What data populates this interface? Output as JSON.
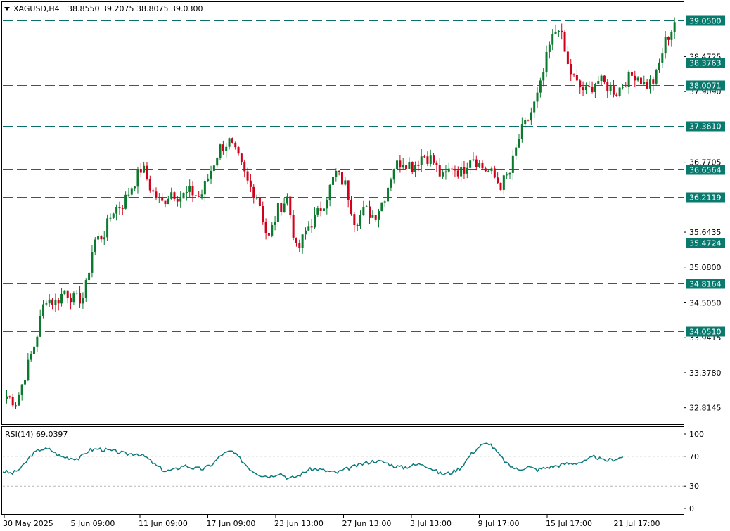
{
  "header": {
    "symbol": "XAGUSD,H4",
    "ohlc": "38.8550 39.2075 38.8075 39.0300"
  },
  "rsi_panel": {
    "label": "RSI(14) 69.0397",
    "levels": [
      "100",
      "70",
      "30",
      "0"
    ]
  },
  "colors": {
    "bull": "#0b7a2e",
    "bear": "#d0021b",
    "level_line": "#0b6e6a",
    "tag_bg": "#0b7a6e",
    "rsi_line": "#0b7a7a",
    "frame": "#000000"
  },
  "chart_data": [
    {
      "type": "candlestick",
      "title": "XAGUSD,H4",
      "ylim": [
        32.55,
        39.35
      ],
      "y_ticks": [
        "38.4725",
        "37.9090",
        "36.7705",
        "35.6435",
        "35.0800",
        "34.5050",
        "33.9415",
        "33.3780",
        "32.8145"
      ],
      "price_levels": [
        "39.0500",
        "38.3763",
        "38.0071",
        "37.3610",
        "36.6564",
        "36.2119",
        "35.4724",
        "34.8164",
        "34.0510"
      ],
      "x_ticks": [
        "30 May 2025",
        "5 Jun 09:00",
        "11 Jun 09:00",
        "17 Jun 09:00",
        "23 Jun 13:00",
        "27 Jun 13:00",
        "3 Jul 13:00",
        "9 Jul 17:00",
        "15 Jul 17:00",
        "21 Jul 17:00"
      ],
      "close_path": [
        33.0,
        32.9,
        33.4,
        33.9,
        34.6,
        34.5,
        34.7,
        34.55,
        34.6,
        35.5,
        35.6,
        36.0,
        36.1,
        36.4,
        36.7,
        36.3,
        36.1,
        36.3,
        36.2,
        36.3,
        36.2,
        36.6,
        37.0,
        37.1,
        36.8,
        36.4,
        36.2,
        35.5,
        36.0,
        36.2,
        35.3,
        35.7,
        35.9,
        36.2,
        36.6,
        36.4,
        35.8,
        36.0,
        35.9,
        36.2,
        36.7,
        36.8,
        36.7,
        36.9,
        36.8,
        36.5,
        36.7,
        36.6,
        36.9,
        36.7,
        36.6,
        36.4,
        36.6,
        37.2,
        37.5,
        37.9,
        38.6,
        39.0,
        38.3,
        38.0,
        37.9,
        38.1,
        38.0,
        37.9,
        38.1,
        38.2,
        38.0,
        38.1,
        38.7,
        39.0
      ],
      "rsi": {
        "name": "RSI(14)",
        "ylim": [
          0,
          100
        ],
        "last": 69.0397,
        "levels": [
          70,
          30
        ],
        "values": [
          50,
          47,
          55,
          72,
          80,
          79,
          70,
          68,
          67,
          78,
          80,
          78,
          76,
          73,
          74,
          69,
          58,
          50,
          52,
          58,
          54,
          53,
          60,
          73,
          77,
          65,
          52,
          45,
          43,
          48,
          40,
          44,
          52,
          53,
          50,
          48,
          53,
          57,
          61,
          64,
          62,
          57,
          55,
          58,
          60,
          53,
          46,
          48,
          55,
          72,
          84,
          88,
          72,
          58,
          52,
          56,
          52,
          55,
          57,
          60,
          61,
          63,
          70,
          64,
          66,
          69
        ]
      }
    }
  ]
}
